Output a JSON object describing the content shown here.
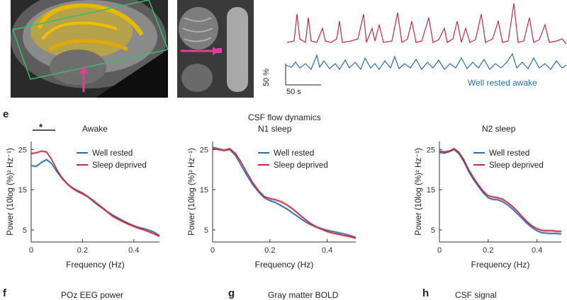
{
  "figure": {
    "panel_e_letter": "e",
    "main_title": "CSF flow dynamics",
    "significance_marker": "*",
    "bottom_panels": [
      {
        "letter": "f",
        "title": "POz EEG power"
      },
      {
        "letter": "g",
        "title": "Gray matter BOLD"
      },
      {
        "letter": "h",
        "title": "CSF signal"
      }
    ]
  },
  "top_traces": {
    "scale_y": "50 %",
    "scale_x": "50 s",
    "legend": "Well rested awake",
    "colors": {
      "sleep_deprived": "#c8283c",
      "well_rested": "#2b6cb0"
    }
  },
  "chart_data": [
    {
      "type": "line",
      "title": "Awake",
      "xlabel": "Frequency (Hz)",
      "ylabel": "Power (10log (%)² Hz⁻¹)",
      "xlim": [
        0,
        0.5
      ],
      "ylim": [
        2,
        27
      ],
      "xticks": [
        "0",
        "0.2",
        "0.4"
      ],
      "yticks": [
        "5",
        "15",
        "25"
      ],
      "x": [
        0,
        0.02,
        0.04,
        0.06,
        0.08,
        0.1,
        0.12,
        0.14,
        0.16,
        0.18,
        0.2,
        0.22,
        0.24,
        0.26,
        0.28,
        0.3,
        0.32,
        0.34,
        0.36,
        0.38,
        0.4,
        0.42,
        0.44,
        0.46,
        0.48,
        0.5
      ],
      "series": [
        {
          "name": "Well rested",
          "color": "#2b6cb0",
          "values": [
            21,
            20.8,
            21.8,
            22.5,
            21.5,
            19.5,
            17.8,
            16.5,
            15.5,
            14.8,
            14.2,
            13.3,
            12.2,
            11.2,
            10.3,
            9.4,
            8.6,
            7.9,
            7.2,
            6.6,
            6,
            5.6,
            5.3,
            4.9,
            4.4,
            3.6
          ]
        },
        {
          "name": "Sleep deprived",
          "color": "#c8283c",
          "values": [
            24,
            24.2,
            24.6,
            24.4,
            22.5,
            20,
            18,
            16.5,
            15.4,
            14.6,
            14,
            13.3,
            12.4,
            11.4,
            10.4,
            9.3,
            8.3,
            7.6,
            7,
            6.4,
            5.9,
            5.4,
            5,
            4.5,
            4,
            3.4
          ]
        }
      ],
      "legend": "top-right"
    },
    {
      "type": "line",
      "title": "N1 sleep",
      "xlabel": "Frequency (Hz)",
      "ylabel": "Power (10log (%)² Hz⁻¹)",
      "xlim": [
        0,
        0.5
      ],
      "ylim": [
        2,
        27
      ],
      "xticks": [
        "0",
        "0.2",
        "0.4"
      ],
      "yticks": [
        "5",
        "15",
        "25"
      ],
      "x": [
        0,
        0.02,
        0.04,
        0.06,
        0.08,
        0.1,
        0.12,
        0.14,
        0.16,
        0.18,
        0.2,
        0.22,
        0.24,
        0.26,
        0.28,
        0.3,
        0.32,
        0.34,
        0.36,
        0.38,
        0.4,
        0.42,
        0.44,
        0.46,
        0.48,
        0.5
      ],
      "series": [
        {
          "name": "Well rested",
          "color": "#2b6cb0",
          "values": [
            25.5,
            25.2,
            24.8,
            25,
            23.5,
            21,
            18.5,
            16.3,
            14.5,
            13,
            12.3,
            11.8,
            11,
            10.2,
            9.2,
            8.2,
            7.2,
            6.4,
            5.8,
            5.3,
            4.9,
            4.6,
            4.3,
            4,
            3.6,
            3.1
          ]
        },
        {
          "name": "Sleep deprived",
          "color": "#c8283c",
          "values": [
            25.3,
            25,
            24.8,
            25.2,
            24,
            21.8,
            19.2,
            16.8,
            14.8,
            13.3,
            12.8,
            12.5,
            12,
            11.2,
            10.2,
            9,
            7.8,
            6.7,
            5.8,
            5.2,
            4.6,
            4.2,
            3.9,
            3.6,
            3.3,
            3
          ]
        }
      ],
      "legend": "top-right"
    },
    {
      "type": "line",
      "title": "N2 sleep",
      "xlabel": "Frequency (Hz)",
      "ylabel": "Power (10log (%)² Hz⁻¹)",
      "xlim": [
        0,
        0.5
      ],
      "ylim": [
        2,
        27
      ],
      "xticks": [
        "0",
        "0.2",
        "0.4"
      ],
      "yticks": [
        "5",
        "15",
        "25"
      ],
      "x": [
        0,
        0.02,
        0.04,
        0.06,
        0.08,
        0.1,
        0.12,
        0.14,
        0.16,
        0.18,
        0.2,
        0.22,
        0.24,
        0.26,
        0.28,
        0.3,
        0.32,
        0.34,
        0.36,
        0.38,
        0.4,
        0.42,
        0.44,
        0.46,
        0.48,
        0.5
      ],
      "series": [
        {
          "name": "Well rested",
          "color": "#2b6cb0",
          "values": [
            24.3,
            24.1,
            24.5,
            25,
            24,
            22,
            19.5,
            17.5,
            15.8,
            14.2,
            13,
            12.6,
            12.5,
            12,
            11.2,
            10.2,
            9,
            7.8,
            6.6,
            5.6,
            4.8,
            4.3,
            4.2,
            4.1,
            4.1,
            4
          ]
        },
        {
          "name": "Sleep deprived",
          "color": "#c8283c",
          "values": [
            24.6,
            24.4,
            24.6,
            25.2,
            24.3,
            22.5,
            20,
            18,
            16.2,
            14.6,
            13.5,
            13.2,
            13,
            12.6,
            11.8,
            10.8,
            9.6,
            8.3,
            7,
            6,
            5.3,
            4.9,
            4.8,
            4.8,
            4.7,
            4.6
          ]
        }
      ],
      "legend": "top-right"
    }
  ]
}
